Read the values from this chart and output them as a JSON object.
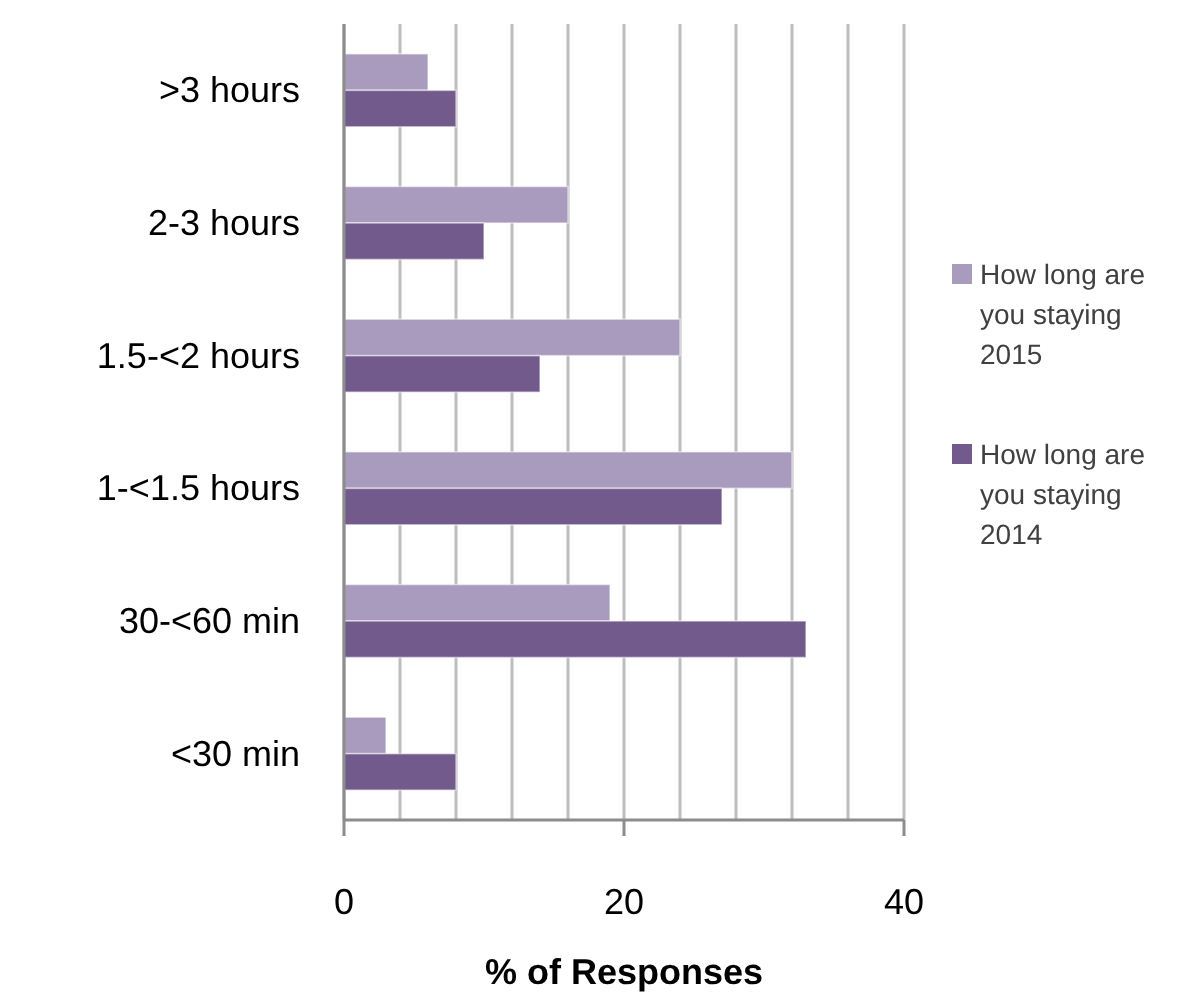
{
  "chart_data": {
    "type": "bar",
    "orientation": "horizontal",
    "xlabel": "% of Responses",
    "categories": [
      ">3 hours",
      "2-3 hours",
      "1.5-<2 hours",
      "1-<1.5 hours",
      "30-<60 min",
      "<30 min"
    ],
    "series": [
      {
        "name": "How long are you staying 2015",
        "color": "#a99bbd",
        "values": [
          6,
          16,
          24,
          32,
          19,
          3
        ]
      },
      {
        "name": "How long are you staying 2014",
        "color": "#725a8d",
        "values": [
          8,
          10,
          14,
          27,
          33,
          8
        ]
      }
    ],
    "xlim": [
      0,
      40
    ],
    "xticks": [
      0,
      {
        "value": 4,
        "label": null
      },
      {
        "value": 8,
        "label": null
      },
      {
        "value": 12,
        "label": null
      },
      {
        "value": 16,
        "label": null
      },
      20,
      {
        "value": 24,
        "label": null
      },
      {
        "value": 28,
        "label": null
      },
      {
        "value": 32,
        "label": null
      },
      {
        "value": 36,
        "label": null
      },
      40
    ],
    "grid": "x",
    "legend": "right"
  }
}
